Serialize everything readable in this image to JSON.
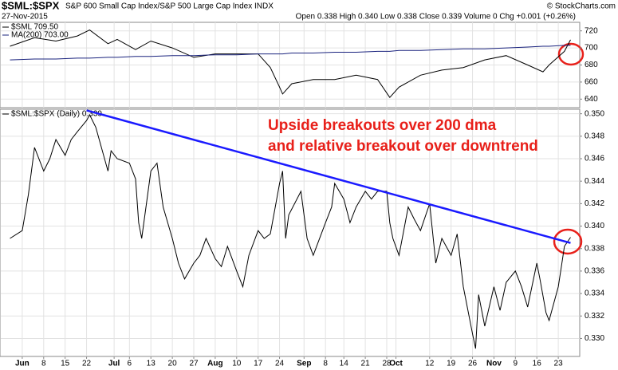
{
  "header": {
    "symbol": "$SML:$SPX",
    "description": "S&P 600 Small Cap Index/S&P 500 Large Cap Index INDX",
    "source": "© StockCharts.com",
    "date": "27-Nov-2015",
    "quote": "Open 0.338 High 0.340 Low 0.338 Close 0.339 Volume 0 Chg +0.001 (+0.26%)"
  },
  "chart_data": [
    {
      "type": "line",
      "log_scale": false,
      "grid": true,
      "x": [
        "2015-05-28",
        "2015-06-05",
        "2015-06-12",
        "2015-06-19",
        "2015-06-23",
        "2015-06-29",
        "2015-07-02",
        "2015-07-08",
        "2015-07-13",
        "2015-07-20",
        "2015-07-27",
        "2015-08-03",
        "2015-08-10",
        "2015-08-17",
        "2015-08-21",
        "2015-08-24",
        "2015-08-25",
        "2015-08-28",
        "2015-09-04",
        "2015-09-11",
        "2015-09-18",
        "2015-09-25",
        "2015-09-29",
        "2015-10-02",
        "2015-10-09",
        "2015-10-16",
        "2015-10-23",
        "2015-10-30",
        "2015-11-06",
        "2015-11-13",
        "2015-11-18",
        "2015-11-20",
        "2015-11-25",
        "2015-11-27"
      ],
      "series": [
        {
          "name": "$SML 709.50",
          "color": "#000000",
          "values": [
            702,
            712,
            708,
            714,
            721,
            705,
            710,
            698,
            708,
            700,
            689,
            693,
            693,
            693,
            677,
            654,
            646,
            658,
            663,
            663,
            668,
            663,
            642,
            654,
            668,
            674,
            677,
            686,
            691,
            680,
            672,
            680,
            696,
            709.5
          ]
        },
        {
          "name": "MA(200) 703.00",
          "color": "#1a237e",
          "values": [
            686,
            687,
            687,
            688,
            688,
            689,
            689,
            690,
            690,
            691,
            691,
            692,
            692,
            693,
            693,
            693,
            693,
            694,
            694,
            695,
            695,
            696,
            696,
            697,
            697,
            698,
            699,
            699,
            700,
            701,
            702,
            702,
            703,
            703
          ]
        }
      ],
      "xlim": [
        "2015-05-25",
        "2015-11-30"
      ],
      "ylim": [
        630,
        730
      ],
      "yticks": [
        640,
        660,
        680,
        700,
        720
      ]
    },
    {
      "type": "line",
      "log_scale": false,
      "grid": true,
      "x": [
        "2015-05-28",
        "2015-06-01",
        "2015-06-03",
        "2015-06-05",
        "2015-06-08",
        "2015-06-10",
        "2015-06-12",
        "2015-06-15",
        "2015-06-17",
        "2015-06-19",
        "2015-06-22",
        "2015-06-23",
        "2015-06-25",
        "2015-06-29",
        "2015-06-30",
        "2015-07-02",
        "2015-07-06",
        "2015-07-08",
        "2015-07-09",
        "2015-07-10",
        "2015-07-13",
        "2015-07-15",
        "2015-07-17",
        "2015-07-20",
        "2015-07-22",
        "2015-07-24",
        "2015-07-27",
        "2015-07-29",
        "2015-07-31",
        "2015-08-03",
        "2015-08-05",
        "2015-08-07",
        "2015-08-10",
        "2015-08-12",
        "2015-08-14",
        "2015-08-17",
        "2015-08-19",
        "2015-08-21",
        "2015-08-24",
        "2015-08-25",
        "2015-08-26",
        "2015-08-27",
        "2015-08-31",
        "2015-09-02",
        "2015-09-04",
        "2015-09-08",
        "2015-09-10",
        "2015-09-11",
        "2015-09-14",
        "2015-09-16",
        "2015-09-18",
        "2015-09-21",
        "2015-09-23",
        "2015-09-25",
        "2015-09-28",
        "2015-09-29",
        "2015-09-30",
        "2015-10-02",
        "2015-10-05",
        "2015-10-07",
        "2015-10-09",
        "2015-10-12",
        "2015-10-14",
        "2015-10-16",
        "2015-10-19",
        "2015-10-21",
        "2015-10-23",
        "2015-10-26",
        "2015-10-27",
        "2015-10-28",
        "2015-10-30",
        "2015-11-02",
        "2015-11-04",
        "2015-11-06",
        "2015-11-09",
        "2015-11-11",
        "2015-11-13",
        "2015-11-16",
        "2015-11-17",
        "2015-11-19",
        "2015-11-20",
        "2015-11-23",
        "2015-11-24",
        "2015-11-25",
        "2015-11-27"
      ],
      "series": [
        {
          "name": "$SML:$SPX (Daily) 0.339",
          "color": "#000000",
          "values": [
            0.3389,
            0.3396,
            0.3428,
            0.347,
            0.3449,
            0.346,
            0.3477,
            0.3463,
            0.3477,
            0.3484,
            0.3494,
            0.3499,
            0.3488,
            0.3449,
            0.3467,
            0.346,
            0.3456,
            0.3442,
            0.3403,
            0.3389,
            0.3449,
            0.3456,
            0.3417,
            0.3389,
            0.3367,
            0.3353,
            0.3367,
            0.3374,
            0.3389,
            0.3371,
            0.3364,
            0.3382,
            0.336,
            0.3346,
            0.3374,
            0.3396,
            0.3389,
            0.3393,
            0.3438,
            0.3449,
            0.3389,
            0.341,
            0.3431,
            0.3389,
            0.3374,
            0.3403,
            0.3417,
            0.3438,
            0.3424,
            0.3403,
            0.3417,
            0.3431,
            0.3424,
            0.3431,
            0.3431,
            0.3403,
            0.3389,
            0.3374,
            0.3417,
            0.3406,
            0.3396,
            0.342,
            0.3367,
            0.3389,
            0.3374,
            0.3393,
            0.3346,
            0.3304,
            0.3291,
            0.3339,
            0.3311,
            0.3346,
            0.3325,
            0.335,
            0.336,
            0.3346,
            0.3328,
            0.3367,
            0.3353,
            0.3323,
            0.3316,
            0.3346,
            0.3364,
            0.3382,
            0.339
          ]
        }
      ],
      "trendline": {
        "color": "#1a1aff",
        "x": [
          "2015-06-22",
          "2015-11-27"
        ],
        "values": [
          0.3503,
          0.3385
        ]
      },
      "annotations": [
        "Upside breakouts over 200 dma",
        "and relative breakout over downtrend"
      ],
      "xlim": [
        "2015-05-25",
        "2015-11-30"
      ],
      "xticks": [
        {
          "value": "2015-06-01",
          "label": "Jun"
        },
        {
          "value": "2015-06-08",
          "label": "8"
        },
        {
          "value": "2015-06-15",
          "label": "15"
        },
        {
          "value": "2015-06-22",
          "label": "22"
        },
        {
          "value": "2015-07-01",
          "label": "Jul"
        },
        {
          "value": "2015-07-06",
          "label": "6"
        },
        {
          "value": "2015-07-13",
          "label": "13"
        },
        {
          "value": "2015-07-20",
          "label": "20"
        },
        {
          "value": "2015-07-27",
          "label": "27"
        },
        {
          "value": "2015-08-03",
          "label": "Aug"
        },
        {
          "value": "2015-08-10",
          "label": "10"
        },
        {
          "value": "2015-08-17",
          "label": "17"
        },
        {
          "value": "2015-08-24",
          "label": "24"
        },
        {
          "value": "2015-09-01",
          "label": "Sep"
        },
        {
          "value": "2015-09-08",
          "label": "8"
        },
        {
          "value": "2015-09-14",
          "label": "14"
        },
        {
          "value": "2015-09-21",
          "label": "21"
        },
        {
          "value": "2015-09-28",
          "label": "28"
        },
        {
          "value": "2015-10-01",
          "label": "Oct"
        },
        {
          "value": "2015-10-12",
          "label": "12"
        },
        {
          "value": "2015-10-19",
          "label": "19"
        },
        {
          "value": "2015-10-26",
          "label": "26"
        },
        {
          "value": "2015-11-02",
          "label": "Nov"
        },
        {
          "value": "2015-11-09",
          "label": "9"
        },
        {
          "value": "2015-11-16",
          "label": "16"
        },
        {
          "value": "2015-11-23",
          "label": "23"
        }
      ],
      "ylim": [
        0.3284,
        0.3504
      ],
      "yticks": [
        {
          "value": 0.33,
          "label": "0.330"
        },
        {
          "value": 0.332,
          "label": "0.332"
        },
        {
          "value": 0.334,
          "label": "0.334"
        },
        {
          "value": 0.336,
          "label": "0.336"
        },
        {
          "value": 0.338,
          "label": "0.338"
        },
        {
          "value": 0.34,
          "label": "0.340"
        },
        {
          "value": 0.342,
          "label": "0.342"
        },
        {
          "value": 0.344,
          "label": "0.344"
        },
        {
          "value": 0.346,
          "label": "0.346"
        },
        {
          "value": 0.348,
          "label": "0.348"
        },
        {
          "value": 0.35,
          "label": "0.350"
        }
      ]
    }
  ]
}
